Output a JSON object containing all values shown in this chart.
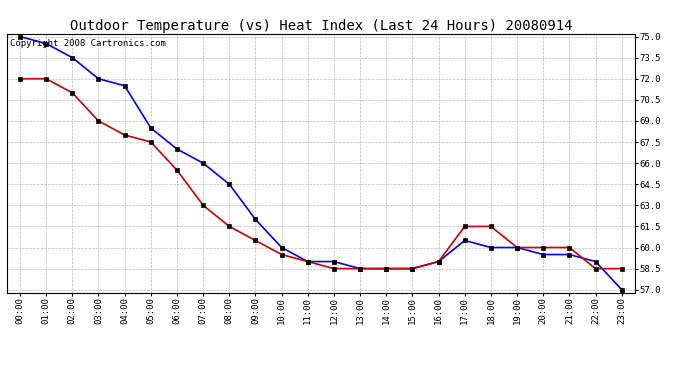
{
  "title": "Outdoor Temperature (vs) Heat Index (Last 24 Hours) 20080914",
  "copyright_text": "Copyright 2008 Cartronics.com",
  "x_labels": [
    "00:00",
    "01:00",
    "02:00",
    "03:00",
    "04:00",
    "05:00",
    "06:00",
    "07:00",
    "08:00",
    "09:00",
    "10:00",
    "11:00",
    "12:00",
    "13:00",
    "14:00",
    "15:00",
    "16:00",
    "17:00",
    "18:00",
    "19:00",
    "20:00",
    "21:00",
    "22:00",
    "23:00"
  ],
  "blue_data": [
    75.0,
    74.5,
    73.5,
    72.0,
    71.5,
    68.5,
    67.0,
    66.0,
    64.5,
    62.0,
    60.0,
    59.0,
    59.0,
    58.5,
    58.5,
    58.5,
    59.0,
    60.5,
    60.0,
    60.0,
    59.5,
    59.5,
    59.0,
    57.0
  ],
  "red_data": [
    72.0,
    72.0,
    71.0,
    69.0,
    68.0,
    67.5,
    65.5,
    63.0,
    61.5,
    60.5,
    59.5,
    59.0,
    58.5,
    58.5,
    58.5,
    58.5,
    59.0,
    61.5,
    61.5,
    60.0,
    60.0,
    60.0,
    58.5,
    58.5
  ],
  "blue_color": "#0000ff",
  "red_color": "#cc0000",
  "marker_color": "#000000",
  "ylim_min": 57.0,
  "ylim_max": 75.0,
  "ytick_start": 57.0,
  "ytick_end": 75.0,
  "ytick_step": 1.5,
  "background_color": "#ffffff",
  "plot_bg_color": "#ffffff",
  "grid_color": "#bbbbbb",
  "title_fontsize": 10,
  "copyright_fontsize": 6.5,
  "tick_fontsize": 6.5
}
